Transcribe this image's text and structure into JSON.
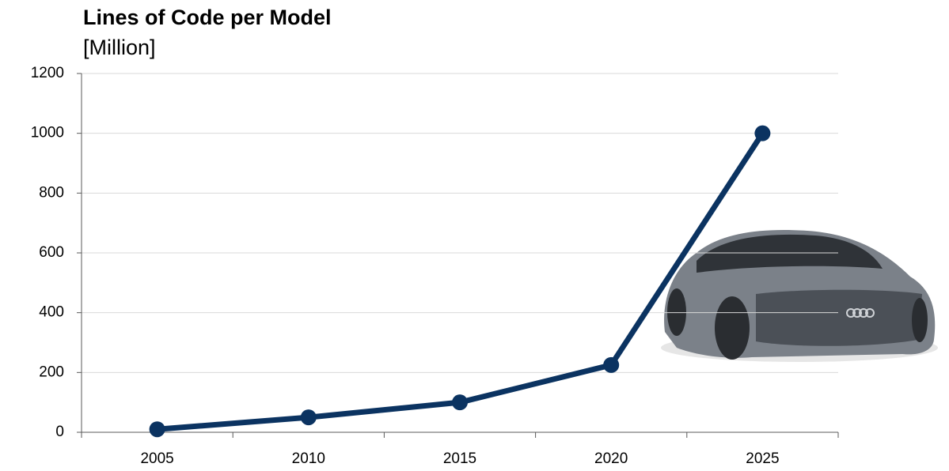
{
  "chart_data": {
    "type": "line",
    "title": "Lines of Code per Model",
    "subtitle": "[Million]",
    "categories": [
      "2005",
      "2010",
      "2015",
      "2020",
      "2025"
    ],
    "values": [
      10,
      50,
      100,
      225,
      1000
    ],
    "color": "#0b3361",
    "ylim": [
      0,
      1200
    ],
    "yticks": [
      0,
      200,
      400,
      600,
      800,
      1000,
      1200
    ],
    "grid": true
  }
}
